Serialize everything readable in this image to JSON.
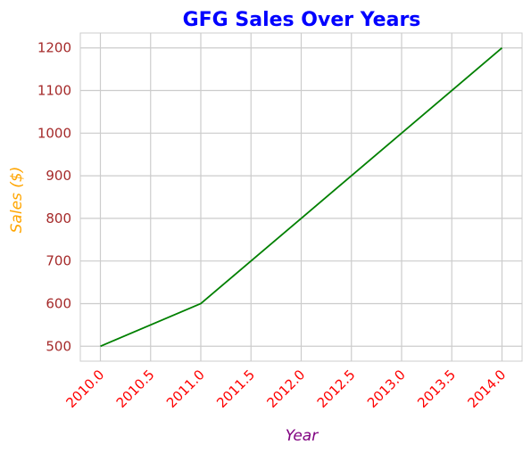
{
  "chart_data": {
    "type": "line",
    "title": "GFG Sales Over Years",
    "xlabel": "Year",
    "ylabel": "Sales ($)",
    "x": [
      2010,
      2011,
      2012,
      2013,
      2014
    ],
    "series": [
      {
        "values": [
          500,
          600,
          800,
          1000,
          1200
        ]
      }
    ],
    "xticks": [
      "2010.0",
      "2010.5",
      "2011.0",
      "2011.5",
      "2012.0",
      "2012.5",
      "2013.0",
      "2013.5",
      "2014.0"
    ],
    "yticks": [
      "500",
      "600",
      "700",
      "800",
      "900",
      "1000",
      "1100",
      "1200"
    ],
    "xlim": [
      2009.8,
      2014.2
    ],
    "ylim": [
      465,
      1235
    ],
    "grid": true,
    "colors": {
      "title": "#0000ff",
      "ylabel": "#ffa500",
      "xlabel": "#800080",
      "line": "#008000",
      "xtick": "#ff0000",
      "ytick": "#a52a2a",
      "grid": "#cccccc",
      "spine": "#cccccc"
    }
  }
}
